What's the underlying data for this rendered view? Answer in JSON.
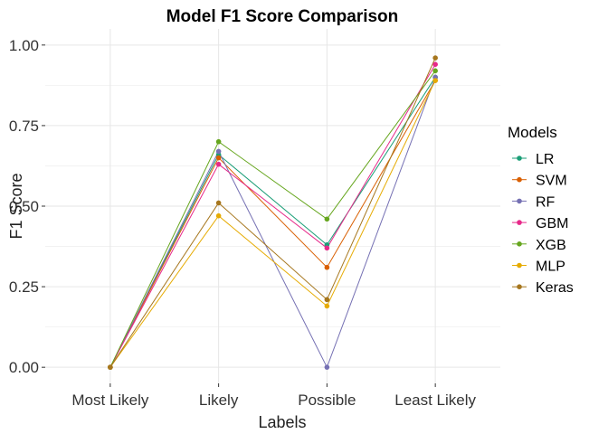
{
  "chart_data": {
    "type": "line",
    "title": "Model F1 Score Comparison",
    "xlabel": "Labels",
    "ylabel": "F1 Score",
    "categories": [
      "Most Likely",
      "Likely",
      "Possible",
      "Least Likely"
    ],
    "ylim": [
      -0.05,
      1.05
    ],
    "yticks": [
      0.0,
      0.25,
      0.5,
      0.75,
      1.0
    ],
    "ytick_labels": [
      "0.00",
      "0.25",
      "0.50",
      "0.75",
      "1.00"
    ],
    "grid": true,
    "legend": {
      "title": "Models",
      "placement": "right"
    },
    "series": [
      {
        "name": "LR",
        "color": "#1b9e77",
        "values": [
          0.0,
          0.66,
          0.38,
          0.9
        ]
      },
      {
        "name": "SVM",
        "color": "#d95f02",
        "values": [
          0.0,
          0.65,
          0.31,
          0.89
        ]
      },
      {
        "name": "RF",
        "color": "#7570b3",
        "values": [
          0.0,
          0.67,
          0.0,
          0.9
        ]
      },
      {
        "name": "GBM",
        "color": "#e7298a",
        "values": [
          0.0,
          0.63,
          0.37,
          0.94
        ]
      },
      {
        "name": "XGB",
        "color": "#66a61e",
        "values": [
          0.0,
          0.7,
          0.46,
          0.92
        ]
      },
      {
        "name": "MLP",
        "color": "#e6ab02",
        "values": [
          0.0,
          0.47,
          0.19,
          0.89
        ]
      },
      {
        "name": "Keras",
        "color": "#a6761d",
        "values": [
          0.0,
          0.51,
          0.21,
          0.96
        ]
      }
    ]
  }
}
